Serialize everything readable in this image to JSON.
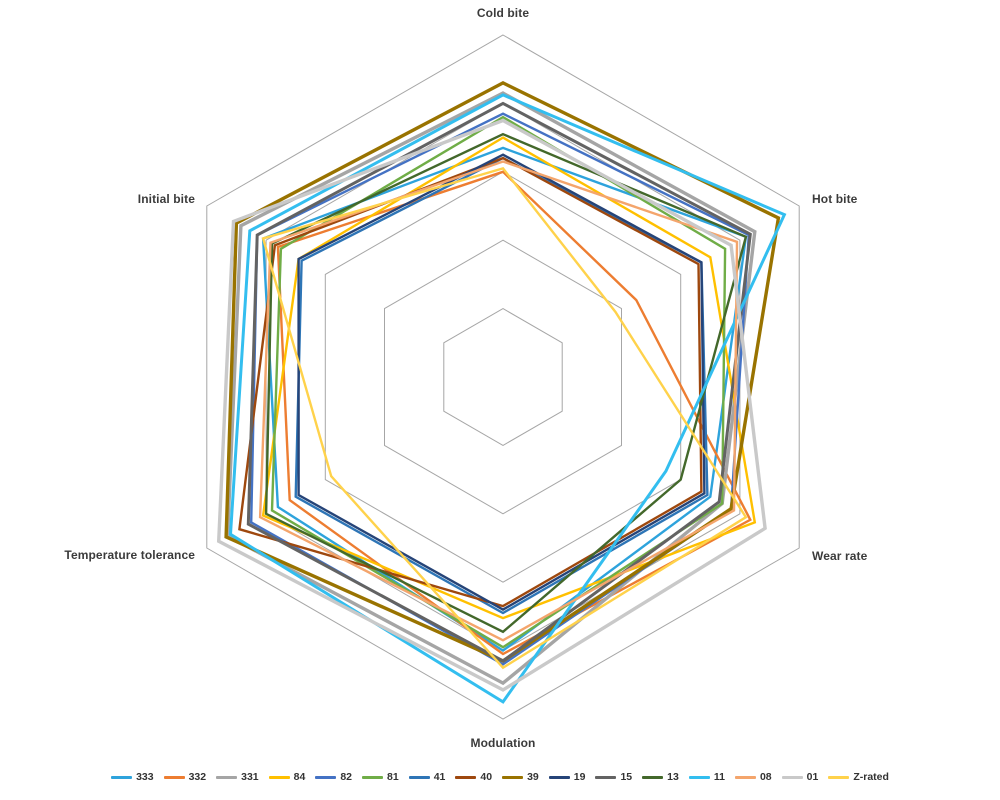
{
  "chart_data": {
    "type": "radar",
    "axes": [
      "Cold bite",
      "Hot bite",
      "Wear rate",
      "Modulation",
      "Temperature tolerance",
      "Initial bite"
    ],
    "scale": {
      "min": 0,
      "max": 10,
      "ring_step": 2,
      "rings": 5,
      "gridlines": true,
      "spokes": false
    },
    "grid_color": "#A6A6A6",
    "background_color": "#FFFFFF",
    "legend_position": "bottom",
    "series": [
      {
        "name": "333",
        "color": "#2EA3DC",
        "values": [
          6.7,
          8.2,
          7.0,
          8.0,
          7.6,
          8.1
        ]
      },
      {
        "name": "332",
        "color": "#ED7D31",
        "values": [
          6.0,
          4.5,
          8.35,
          8.1,
          7.2,
          7.6
        ]
      },
      {
        "name": "331",
        "color": "#A5A5A5",
        "values": [
          8.3,
          8.5,
          7.4,
          8.95,
          9.3,
          8.85
        ]
      },
      {
        "name": "84",
        "color": "#FFC000",
        "values": [
          7.0,
          7.0,
          8.5,
          7.05,
          8.1,
          6.9
        ]
      },
      {
        "name": "82",
        "color": "#4472C4",
        "values": [
          7.7,
          8.3,
          7.7,
          8.4,
          8.5,
          8.3
        ]
      },
      {
        "name": "81",
        "color": "#70AD47",
        "values": [
          7.6,
          7.5,
          7.4,
          7.9,
          7.8,
          7.5
        ]
      },
      {
        "name": "41",
        "color": "#2E75B6",
        "values": [
          6.4,
          6.7,
          6.9,
          6.9,
          7.0,
          6.8
        ]
      },
      {
        "name": "40",
        "color": "#9E480E",
        "values": [
          6.4,
          6.6,
          6.7,
          6.7,
          8.9,
          7.7
        ]
      },
      {
        "name": "39",
        "color": "#997300",
        "values": [
          8.6,
          9.3,
          7.7,
          8.3,
          9.35,
          9.0
        ]
      },
      {
        "name": "19",
        "color": "#264478",
        "values": [
          6.5,
          6.7,
          6.8,
          6.8,
          6.9,
          6.9
        ]
      },
      {
        "name": "15",
        "color": "#636363",
        "values": [
          8.0,
          8.35,
          7.3,
          8.3,
          8.6,
          8.3
        ]
      },
      {
        "name": "13",
        "color": "#43682B",
        "values": [
          7.1,
          8.2,
          6.0,
          7.45,
          8.0,
          7.8
        ]
      },
      {
        "name": "11",
        "color": "#33BEEF",
        "values": [
          8.25,
          9.5,
          5.5,
          9.5,
          9.2,
          8.55
        ]
      },
      {
        "name": "08",
        "color": "#F4A56C",
        "values": [
          6.3,
          7.9,
          7.8,
          7.7,
          8.2,
          7.85
        ]
      },
      {
        "name": "01",
        "color": "#C9C9C9",
        "values": [
          7.5,
          7.7,
          8.85,
          9.15,
          9.6,
          9.1
        ]
      },
      {
        "name": "Z-rated",
        "color": "#FFD24B",
        "values": [
          6.1,
          3.8,
          8.2,
          8.5,
          5.8,
          8.1
        ]
      }
    ]
  }
}
